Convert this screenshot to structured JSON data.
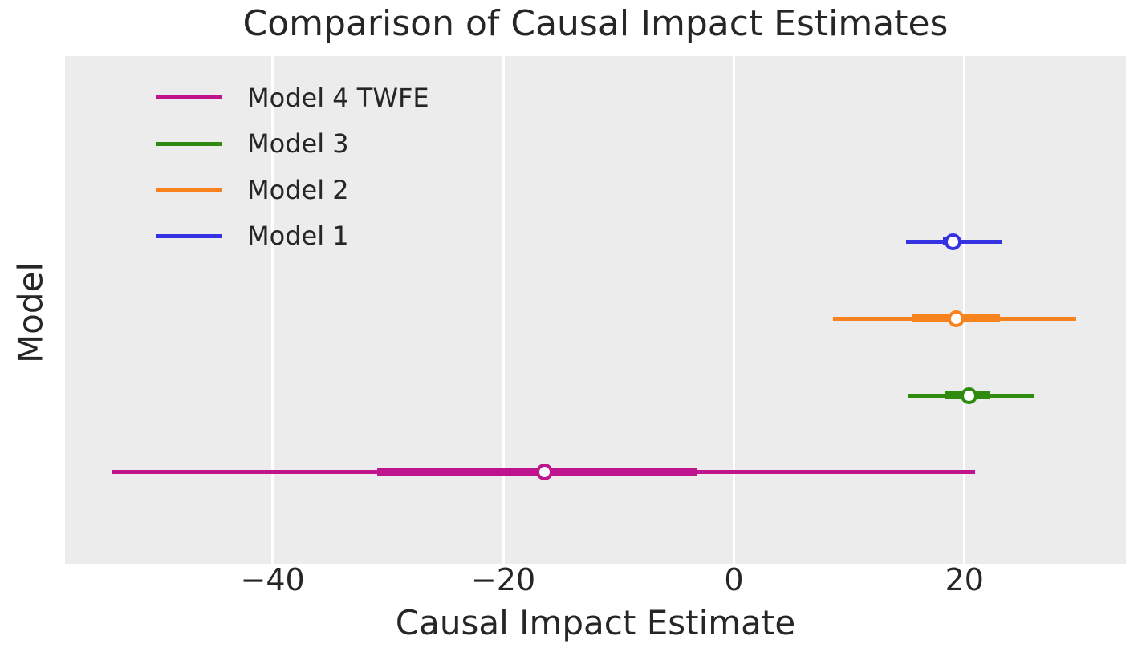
{
  "figure": {
    "title": "Comparison of Causal Impact Estimates",
    "x_axis_label": "Causal Impact Estimate",
    "y_axis_label": "Model",
    "colors": {
      "plot_background": "#ececec",
      "gridline": "#ffffff",
      "text": "#262626",
      "marker_fill": "#ffffff"
    }
  },
  "legend": {
    "position": "upper-left",
    "entries": [
      {
        "label": "Model 4 TWFE",
        "color": "#c0148f"
      },
      {
        "label": "Model 3",
        "color": "#2f8b0e"
      },
      {
        "label": "Model 2",
        "color": "#f8821d"
      },
      {
        "label": "Model 1",
        "color": "#3432e2"
      }
    ]
  },
  "chart_data": {
    "type": "scatter",
    "subtype": "horizontal-interval-coefficient-plot",
    "title": "Comparison of Causal Impact Estimates",
    "xlabel": "Causal Impact Estimate",
    "ylabel": "Model",
    "xlim": [
      -58,
      34
    ],
    "grid": "vertical-only",
    "legend_position": "upper-left",
    "x_ticks": [
      {
        "value": -40,
        "label": "−40"
      },
      {
        "value": -20,
        "label": "−20"
      },
      {
        "value": 0,
        "label": "0"
      },
      {
        "value": 20,
        "label": "20"
      }
    ],
    "series": [
      {
        "name": "Model 1",
        "color": "#3432e2",
        "estimate": 19.0,
        "ci_outer": [
          14.9,
          23.2
        ],
        "ci_inner": [
          18.1,
          19.6
        ]
      },
      {
        "name": "Model 2",
        "color": "#f8821d",
        "estimate": 19.3,
        "ci_outer": [
          8.6,
          29.7
        ],
        "ci_inner": [
          15.4,
          23.1
        ]
      },
      {
        "name": "Model 3",
        "color": "#2f8b0e",
        "estimate": 20.4,
        "ci_outer": [
          15.1,
          26.1
        ],
        "ci_inner": [
          18.3,
          22.2
        ]
      },
      {
        "name": "Model 4 TWFE",
        "color": "#c0148f",
        "estimate": -16.4,
        "ci_outer": [
          -53.9,
          20.9
        ],
        "ci_inner": [
          -30.9,
          -3.2
        ]
      }
    ]
  }
}
